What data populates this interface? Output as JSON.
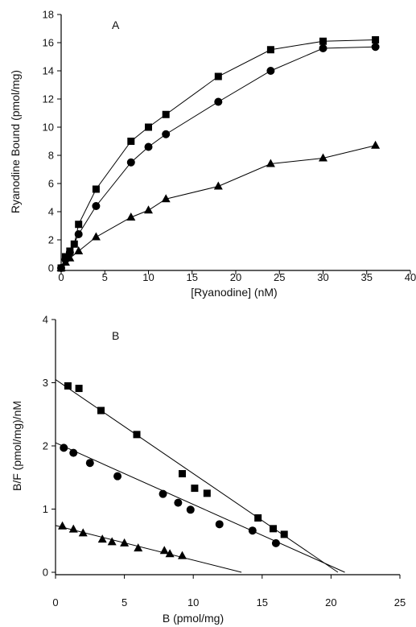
{
  "chart_data": [
    {
      "panel": "A",
      "type": "line",
      "xlabel": "[Ryanodine] (nM)",
      "ylabel": "Ryanodine Bound (pmol/mg)",
      "xlim": [
        0,
        40
      ],
      "ylim": [
        0,
        18
      ],
      "xticks": [
        0,
        5,
        10,
        15,
        20,
        25,
        30,
        35,
        40
      ],
      "yticks": [
        0,
        2,
        4,
        6,
        8,
        10,
        12,
        14,
        16,
        18
      ],
      "grid": false,
      "series": [
        {
          "marker": "square",
          "x": [
            0,
            0.5,
            1,
            1.5,
            2,
            4,
            8,
            10,
            12,
            18,
            24,
            30,
            36
          ],
          "y": [
            0,
            0.8,
            1.2,
            1.7,
            3.1,
            5.6,
            9.0,
            10.0,
            10.9,
            13.6,
            15.5,
            16.1,
            16.2
          ]
        },
        {
          "marker": "circle",
          "x": [
            0,
            0.5,
            1,
            2,
            4,
            8,
            10,
            12,
            18,
            24,
            30,
            36
          ],
          "y": [
            0,
            0.6,
            1.1,
            2.4,
            4.4,
            7.5,
            8.6,
            9.5,
            11.8,
            14.0,
            15.6,
            15.7
          ]
        },
        {
          "marker": "triangle",
          "x": [
            0,
            0.5,
            1,
            2,
            4,
            8,
            10,
            12,
            18,
            24,
            30,
            36
          ],
          "y": [
            0,
            0.4,
            0.7,
            1.2,
            2.2,
            3.6,
            4.1,
            4.9,
            5.8,
            7.4,
            7.8,
            8.7
          ]
        }
      ]
    },
    {
      "panel": "B",
      "type": "scatter",
      "xlabel": "B (pmol/mg)",
      "ylabel": "B/F (pmol/mg)/nM",
      "xlim": [
        0,
        25
      ],
      "ylim": [
        0,
        4
      ],
      "xticks": [
        0,
        5,
        10,
        15,
        20,
        25
      ],
      "yticks": [
        0,
        1,
        2,
        3,
        4
      ],
      "grid": false,
      "series": [
        {
          "marker": "square",
          "x": [
            0.9,
            1.7,
            3.3,
            5.9,
            9.2,
            10.1,
            11.0,
            14.7,
            15.8,
            16.6
          ],
          "y": [
            2.95,
            2.91,
            2.56,
            2.18,
            1.56,
            1.33,
            1.25,
            0.86,
            0.69,
            0.6
          ],
          "fit": {
            "x": [
              0,
              20.5
            ],
            "y": [
              3.05,
              0
            ]
          }
        },
        {
          "marker": "circle",
          "x": [
            0.6,
            1.3,
            2.5,
            4.5,
            7.8,
            8.9,
            9.8,
            11.9,
            14.3,
            16.0
          ],
          "y": [
            1.97,
            1.89,
            1.73,
            1.52,
            1.24,
            1.1,
            0.99,
            0.76,
            0.66,
            0.46
          ],
          "fit": {
            "x": [
              0,
              21
            ],
            "y": [
              2.05,
              0
            ]
          }
        },
        {
          "marker": "triangle",
          "x": [
            0.5,
            1.3,
            2.0,
            3.4,
            4.1,
            5.0,
            6.0,
            7.9,
            8.3,
            9.2
          ],
          "y": [
            0.73,
            0.68,
            0.62,
            0.52,
            0.48,
            0.46,
            0.38,
            0.34,
            0.29,
            0.26
          ],
          "fit": {
            "x": [
              0,
              13.5
            ],
            "y": [
              0.74,
              0
            ]
          }
        }
      ]
    }
  ]
}
